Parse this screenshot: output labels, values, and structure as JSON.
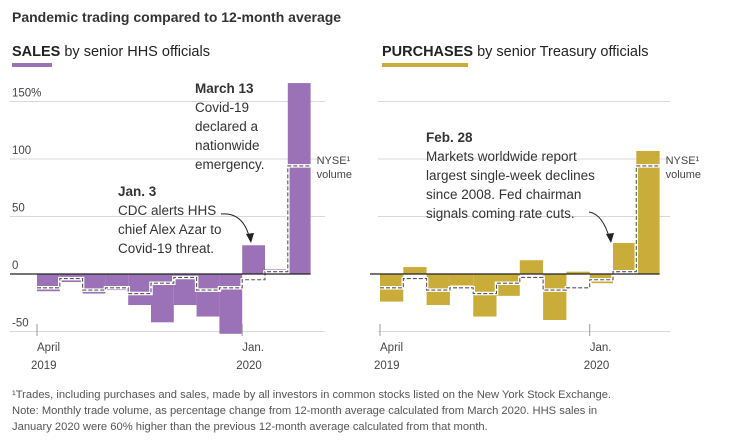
{
  "headline": "Pandemic trading compared to 12-month average",
  "colors": {
    "hhs": "#9b72b8",
    "treasury": "#c9ac3a",
    "axis": "#222222",
    "grid": "#d9d9d9",
    "text": "#333333"
  },
  "panels": [
    {
      "title_bold": "SALES",
      "title_rest": " by senior HHS officials"
    },
    {
      "title_bold": "PURCHASES",
      "title_rest": " by senior Treasury officials"
    }
  ],
  "chart_data": [
    {
      "type": "bar",
      "title": "SALES by senior HHS officials",
      "ylim": [
        -55,
        165
      ],
      "y_ticks": [
        {
          "value": 150,
          "label": "150%"
        },
        {
          "value": 100,
          "label": "100"
        },
        {
          "value": 50,
          "label": "50"
        },
        {
          "value": 0,
          "label": "0"
        },
        {
          "value": -50,
          "label": "-50"
        }
      ],
      "x_ticks": [
        {
          "index": 0,
          "line1": "April",
          "line2": "2019"
        },
        {
          "index": 9,
          "line1": "Jan.",
          "line2": "2020"
        }
      ],
      "months": [
        "Apr 2019",
        "May 2019",
        "Jun 2019",
        "Jul 2019",
        "Aug 2019",
        "Sep 2019",
        "Oct 2019",
        "Nov 2019",
        "Dec 2019",
        "Jan 2020",
        "Feb 2020",
        "Mar 2020"
      ],
      "series": [
        {
          "name": "",
          "values": [
            -15,
            -7,
            -17,
            -14,
            -27,
            -42,
            -27,
            -37,
            -52,
            25,
            4,
            166
          ]
        },
        {
          "name": "NYSE¹ volume",
          "values": [
            -12,
            -4,
            -14,
            -12,
            -17,
            -8,
            -3,
            -14,
            -12,
            -5,
            2,
            94
          ]
        }
      ],
      "nyse_label": [
        "NYSE¹",
        "volume"
      ],
      "annotations": [
        {
          "bold": "March 13",
          "lines": [
            "Covid-19",
            "declared a",
            "nationwide",
            "emergency."
          ]
        },
        {
          "bold": "Jan. 3",
          "lines": [
            "CDC alerts HHS",
            "chief Alex Azar to",
            "Covid-19 threat."
          ]
        }
      ]
    },
    {
      "type": "bar",
      "title": "PURCHASES by senior Treasury officials",
      "ylim": [
        -55,
        165
      ],
      "x_ticks": [
        {
          "index": 0,
          "line1": "April",
          "line2": "2019"
        },
        {
          "index": 9,
          "line1": "Jan.",
          "line2": "2020"
        }
      ],
      "months": [
        "Apr 2019",
        "May 2019",
        "Jun 2019",
        "Jul 2019",
        "Aug 2019",
        "Sep 2019",
        "Oct 2019",
        "Nov 2019",
        "Dec 2019",
        "Jan 2020",
        "Feb 2020",
        "Mar 2020"
      ],
      "series": [
        {
          "name": "",
          "values": [
            -24,
            6,
            -27,
            -10,
            -37,
            -19,
            12,
            -40,
            2,
            -8,
            27,
            107
          ]
        },
        {
          "name": "NYSE¹ volume",
          "values": [
            -12,
            -4,
            -14,
            -12,
            -17,
            -8,
            -3,
            -14,
            -12,
            -5,
            2,
            94
          ]
        }
      ],
      "nyse_label": [
        "NYSE¹",
        "volume"
      ],
      "annotations": [
        {
          "bold": "Feb. 28",
          "lines": [
            "Markets worldwide report",
            "largest single-week declines",
            "since 2008. Fed chairman",
            "signals coming rate cuts."
          ]
        }
      ]
    }
  ],
  "footnotes": [
    "¹Trades, including purchases and sales, made by all investors in common stocks listed on the New York Stock Exchange.",
    "Note: Monthly trade volume, as percentage change from 12-month average calculated from March 2020. HHS sales in",
    "January 2020 were 60% higher than the previous 12-month average calculated from that month."
  ]
}
